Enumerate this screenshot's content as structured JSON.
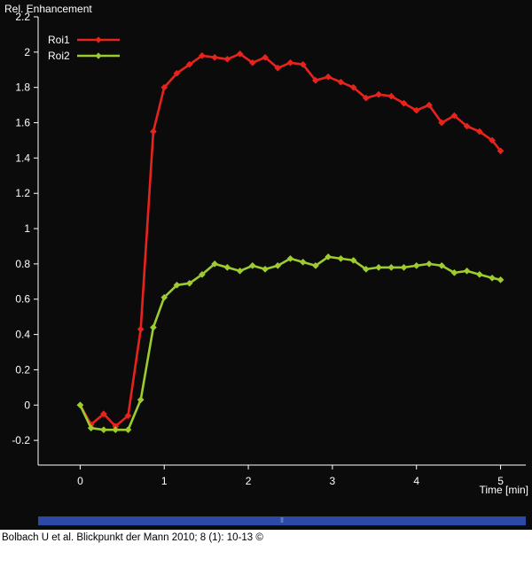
{
  "chart_data": {
    "type": "line",
    "ylabel": "Rel. Enhancement",
    "xlabel": "Time [min]",
    "xlim": [
      -0.5,
      5.3
    ],
    "ylim": [
      -0.34,
      2.2
    ],
    "xticks": [
      0,
      1,
      2,
      3,
      4,
      5
    ],
    "yticks": [
      -0.2,
      0,
      0.2,
      0.4,
      0.6,
      0.8,
      1,
      1.2,
      1.4,
      1.6,
      1.8,
      2,
      2.2
    ],
    "ytick_labels": [
      "-0.2",
      "0",
      "0.2",
      "0.4",
      "0.6",
      "0.8",
      "1",
      "1.2",
      "1.4",
      "1.6",
      "1.8",
      "2",
      "2.2"
    ],
    "legend_position": "top-left",
    "grid": false,
    "series": [
      {
        "name": "Roi1",
        "color": "#e8231e",
        "x": [
          0,
          0.13,
          0.28,
          0.42,
          0.57,
          0.72,
          0.87,
          1.0,
          1.15,
          1.3,
          1.45,
          1.6,
          1.75,
          1.9,
          2.05,
          2.2,
          2.35,
          2.5,
          2.65,
          2.8,
          2.95,
          3.1,
          3.25,
          3.4,
          3.55,
          3.7,
          3.85,
          4.0,
          4.15,
          4.3,
          4.45,
          4.6,
          4.75,
          4.9,
          5.0
        ],
        "values": [
          0.0,
          -0.11,
          -0.05,
          -0.12,
          -0.06,
          0.43,
          1.55,
          1.8,
          1.88,
          1.93,
          1.98,
          1.97,
          1.96,
          1.99,
          1.94,
          1.97,
          1.91,
          1.94,
          1.93,
          1.84,
          1.86,
          1.83,
          1.8,
          1.74,
          1.76,
          1.75,
          1.71,
          1.67,
          1.7,
          1.6,
          1.64,
          1.58,
          1.55,
          1.5,
          1.44
        ]
      },
      {
        "name": "Roi2",
        "color": "#9ccc2e",
        "x": [
          0,
          0.13,
          0.28,
          0.42,
          0.57,
          0.72,
          0.87,
          1.0,
          1.15,
          1.3,
          1.45,
          1.6,
          1.75,
          1.9,
          2.05,
          2.2,
          2.35,
          2.5,
          2.65,
          2.8,
          2.95,
          3.1,
          3.25,
          3.4,
          3.55,
          3.7,
          3.85,
          4.0,
          4.15,
          4.3,
          4.45,
          4.6,
          4.75,
          4.9,
          5.0
        ],
        "values": [
          0.0,
          -0.13,
          -0.14,
          -0.14,
          -0.14,
          0.03,
          0.44,
          0.61,
          0.68,
          0.69,
          0.74,
          0.8,
          0.78,
          0.76,
          0.79,
          0.77,
          0.79,
          0.83,
          0.81,
          0.79,
          0.84,
          0.83,
          0.82,
          0.77,
          0.78,
          0.78,
          0.78,
          0.79,
          0.8,
          0.79,
          0.75,
          0.76,
          0.74,
          0.72,
          0.71
        ]
      }
    ]
  },
  "caption": "Bolbach U et al. Blickpunkt der Mann 2010; 8 (1): 10-13 ©",
  "scrollbar": {
    "grip_glyph": "⦀"
  }
}
